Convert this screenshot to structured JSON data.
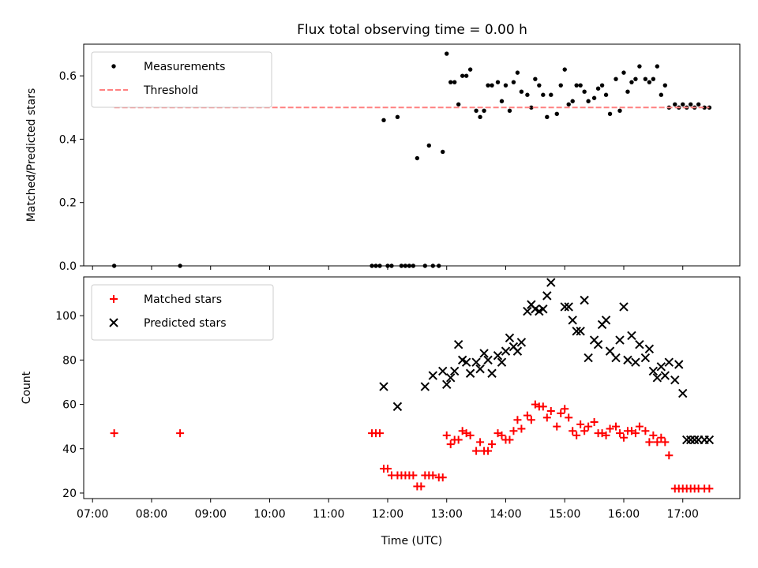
{
  "figure": {
    "title": "Flux total observing time = 0.00 h"
  },
  "chart_data": [
    {
      "type": "scatter",
      "title": "Flux total observing time = 0.00 h",
      "xlabel": "",
      "ylabel": "Matched/Predicted stars",
      "xlim": [
        "06:51",
        "17:58"
      ],
      "ylim": [
        0,
        0.7
      ],
      "yticks": [
        0.0,
        0.2,
        0.4,
        0.6
      ],
      "ytick_labels": [
        "0.0",
        "0.2",
        "0.4",
        "0.6"
      ],
      "legend": {
        "position": "top-left"
      },
      "series": [
        {
          "name": "Measurements",
          "kind": "points",
          "color": "#000000",
          "x": [
            "07:22",
            "08:29",
            "11:44",
            "11:48",
            "11:52",
            "11:56",
            "12:00",
            "12:04",
            "12:10",
            "12:14",
            "12:18",
            "12:22",
            "12:26",
            "12:30",
            "12:38",
            "12:42",
            "12:46",
            "12:52",
            "12:56",
            "13:00",
            "13:04",
            "13:08",
            "13:12",
            "13:16",
            "13:20",
            "13:24",
            "13:30",
            "13:34",
            "13:38",
            "13:42",
            "13:46",
            "13:52",
            "13:56",
            "14:00",
            "14:04",
            "14:08",
            "14:12",
            "14:16",
            "14:22",
            "14:26",
            "14:30",
            "14:34",
            "14:38",
            "14:42",
            "14:46",
            "14:52",
            "14:56",
            "15:00",
            "15:04",
            "15:08",
            "15:12",
            "15:16",
            "15:20",
            "15:24",
            "15:30",
            "15:34",
            "15:38",
            "15:42",
            "15:46",
            "15:52",
            "15:56",
            "16:00",
            "16:04",
            "16:08",
            "16:12",
            "16:16",
            "16:22",
            "16:26",
            "16:30",
            "16:34",
            "16:38",
            "16:42",
            "16:46",
            "16:52",
            "16:56",
            "17:00",
            "17:04",
            "17:08",
            "17:12",
            "17:16",
            "17:22",
            "17:27"
          ],
          "y": [
            0.0,
            0.0,
            0.0,
            0.0,
            0.0,
            0.46,
            0.0,
            0.0,
            0.47,
            0.0,
            0.0,
            0.0,
            0.0,
            0.34,
            0.0,
            0.38,
            0.0,
            0.0,
            0.36,
            0.67,
            0.58,
            0.58,
            0.51,
            0.6,
            0.6,
            0.62,
            0.49,
            0.47,
            0.49,
            0.57,
            0.57,
            0.58,
            0.52,
            0.57,
            0.49,
            0.58,
            0.61,
            0.55,
            0.54,
            0.5,
            0.59,
            0.57,
            0.54,
            0.47,
            0.54,
            0.48,
            0.57,
            0.62,
            0.51,
            0.52,
            0.57,
            0.57,
            0.55,
            0.52,
            0.53,
            0.56,
            0.57,
            0.54,
            0.48,
            0.59,
            0.49,
            0.61,
            0.55,
            0.58,
            0.59,
            0.63,
            0.59,
            0.58,
            0.59,
            0.63,
            0.54,
            0.57,
            0.5,
            0.51,
            0.5,
            0.51,
            0.5,
            0.51,
            0.5,
            0.51,
            0.5,
            0.5
          ]
        },
        {
          "name": "Threshold",
          "kind": "hline",
          "color": "#ff8080",
          "linestyle": "dashed",
          "x": [
            "07:22",
            "17:27"
          ],
          "y": [
            0.5,
            0.5
          ]
        }
      ]
    },
    {
      "type": "scatter",
      "title": "",
      "xlabel": "Time (UTC)",
      "ylabel": "Count",
      "xlim": [
        "06:51",
        "17:58"
      ],
      "ylim": [
        17.5,
        117.5
      ],
      "yticks": [
        20,
        40,
        60,
        80,
        100
      ],
      "ytick_labels": [
        "20",
        "40",
        "60",
        "80",
        "100"
      ],
      "xticks": [
        "07:00",
        "08:00",
        "09:00",
        "10:00",
        "11:00",
        "12:00",
        "13:00",
        "14:00",
        "15:00",
        "16:00",
        "17:00"
      ],
      "legend": {
        "position": "top-left"
      },
      "series": [
        {
          "name": "Matched stars",
          "marker": "plus",
          "color": "#ff0000",
          "x": [
            "07:22",
            "08:29",
            "11:44",
            "11:48",
            "11:52",
            "11:56",
            "12:00",
            "12:04",
            "12:10",
            "12:14",
            "12:18",
            "12:22",
            "12:26",
            "12:30",
            "12:34",
            "12:38",
            "12:42",
            "12:46",
            "12:52",
            "12:56",
            "13:00",
            "13:04",
            "13:08",
            "13:12",
            "13:16",
            "13:20",
            "13:24",
            "13:30",
            "13:34",
            "13:38",
            "13:42",
            "13:46",
            "13:52",
            "13:56",
            "14:00",
            "14:04",
            "14:08",
            "14:12",
            "14:16",
            "14:22",
            "14:26",
            "14:30",
            "14:34",
            "14:38",
            "14:42",
            "14:46",
            "14:52",
            "14:56",
            "15:00",
            "15:04",
            "15:08",
            "15:12",
            "15:16",
            "15:20",
            "15:24",
            "15:30",
            "15:34",
            "15:38",
            "15:42",
            "15:46",
            "15:52",
            "15:56",
            "16:00",
            "16:04",
            "16:08",
            "16:12",
            "16:16",
            "16:22",
            "16:26",
            "16:30",
            "16:34",
            "16:38",
            "16:42",
            "16:46",
            "16:52",
            "16:56",
            "17:00",
            "17:04",
            "17:08",
            "17:12",
            "17:16",
            "17:22",
            "17:27"
          ],
          "y": [
            47,
            47,
            47,
            47,
            47,
            31,
            31,
            28,
            28,
            28,
            28,
            28,
            28,
            23,
            23,
            28,
            28,
            28,
            27,
            27,
            46,
            42,
            44,
            44,
            48,
            47,
            46,
            39,
            43,
            39,
            39,
            42,
            47,
            46,
            44,
            44,
            48,
            53,
            49,
            55,
            53,
            60,
            59,
            59,
            54,
            57,
            50,
            56,
            58,
            54,
            48,
            46,
            51,
            48,
            50,
            52,
            47,
            47,
            46,
            49,
            50,
            47,
            45,
            48,
            48,
            47,
            50,
            48,
            43,
            46,
            43,
            45,
            43,
            37,
            22,
            22,
            22,
            22,
            22,
            22,
            22,
            22,
            22
          ]
        },
        {
          "name": "Predicted stars",
          "marker": "x",
          "color": "#000000",
          "x": [
            "11:56",
            "12:10",
            "12:38",
            "12:46",
            "12:56",
            "13:00",
            "13:04",
            "13:08",
            "13:12",
            "13:16",
            "13:20",
            "13:24",
            "13:30",
            "13:34",
            "13:38",
            "13:42",
            "13:46",
            "13:52",
            "13:56",
            "14:00",
            "14:04",
            "14:08",
            "14:12",
            "14:16",
            "14:22",
            "14:26",
            "14:30",
            "14:34",
            "14:38",
            "14:42",
            "14:46",
            "15:00",
            "15:04",
            "15:08",
            "15:12",
            "15:16",
            "15:20",
            "15:24",
            "15:30",
            "15:34",
            "15:38",
            "15:42",
            "15:46",
            "15:52",
            "15:56",
            "16:00",
            "16:04",
            "16:08",
            "16:12",
            "16:16",
            "16:22",
            "16:26",
            "16:30",
            "16:34",
            "16:38",
            "16:42",
            "16:46",
            "16:52",
            "16:56",
            "17:00",
            "17:04",
            "17:08",
            "17:12",
            "17:16",
            "17:22",
            "17:27"
          ],
          "y": [
            68,
            59,
            68,
            73,
            75,
            69,
            72,
            75,
            87,
            80,
            79,
            74,
            79,
            76,
            83,
            80,
            74,
            82,
            79,
            84,
            90,
            86,
            84,
            88,
            102,
            105,
            103,
            102,
            103,
            109,
            115,
            104,
            104,
            98,
            93,
            93,
            107,
            81,
            89,
            87,
            96,
            98,
            84,
            81,
            89,
            104,
            80,
            91,
            79,
            87,
            81,
            85,
            75,
            72,
            77,
            73,
            79,
            71,
            78,
            65,
            44,
            44,
            44,
            44,
            44,
            44
          ]
        }
      ]
    }
  ]
}
